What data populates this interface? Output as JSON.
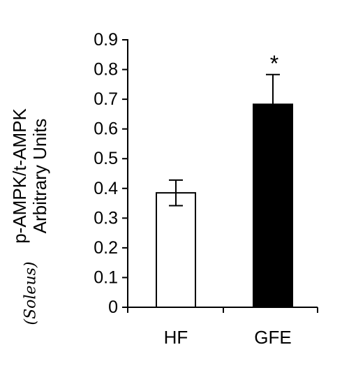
{
  "chart_data": {
    "type": "bar",
    "categories": [
      "HF",
      "GFE"
    ],
    "values": [
      0.385,
      0.683
    ],
    "errors": [
      0.043,
      0.1
    ],
    "colors": [
      "#ffffff",
      "#000000"
    ],
    "significance": [
      "",
      "*"
    ],
    "ylabel_line1": "p-AMPK/t-AMPK",
    "ylabel_line2": "Arbitrary Units",
    "annotation": "(Soleus)",
    "ylim": [
      0,
      0.9
    ],
    "yticks": [
      0,
      0.1,
      0.2,
      0.3,
      0.4,
      0.5,
      0.6,
      0.7,
      0.8,
      0.9
    ],
    "ytick_labels": [
      "0",
      "0.1",
      "0.2",
      "0.3",
      "0.4",
      "0.5",
      "0.6",
      "0.7",
      "0.8",
      "0.9"
    ],
    "grid": false,
    "legend": "none"
  }
}
